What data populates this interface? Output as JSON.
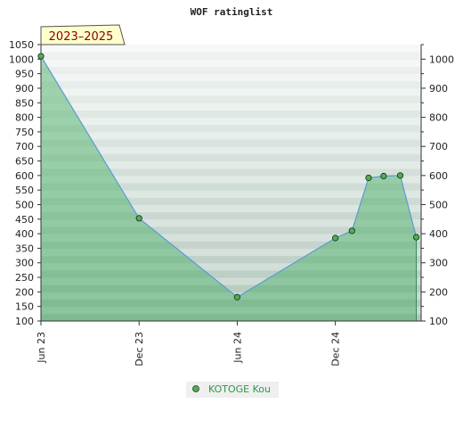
{
  "chart_data": {
    "type": "area",
    "title": "WOF ratinglist",
    "period_label": "2023–2025",
    "x_ticks": [
      "Jun 23",
      "Dec 23",
      "Jun 24",
      "Dec 24"
    ],
    "y_ticks_left": [
      "100",
      "150",
      "200",
      "250",
      "300",
      "350",
      "400",
      "450",
      "500",
      "550",
      "600",
      "650",
      "700",
      "750",
      "800",
      "850",
      "900",
      "950",
      "1000",
      "1050"
    ],
    "y_ticks_right": [
      "100",
      "200",
      "300",
      "400",
      "500",
      "600",
      "700",
      "800",
      "900",
      "1000"
    ],
    "ylim": [
      100,
      1050
    ],
    "xlim": [
      "2023-06-01",
      "2025-05-10"
    ],
    "series": [
      {
        "name": "KOTOGE Kou",
        "points": [
          {
            "x": "2023-06-01",
            "y": 1010
          },
          {
            "x": "2023-12-01",
            "y": 453
          },
          {
            "x": "2024-06-01",
            "y": 182
          },
          {
            "x": "2024-12-01",
            "y": 385
          },
          {
            "x": "2025-01-01",
            "y": 410
          },
          {
            "x": "2025-02-01",
            "y": 592
          },
          {
            "x": "2025-03-01",
            "y": 598
          },
          {
            "x": "2025-04-01",
            "y": 600
          },
          {
            "x": "2025-05-01",
            "y": 388
          }
        ]
      }
    ],
    "grid": true,
    "legend": "bottom"
  }
}
